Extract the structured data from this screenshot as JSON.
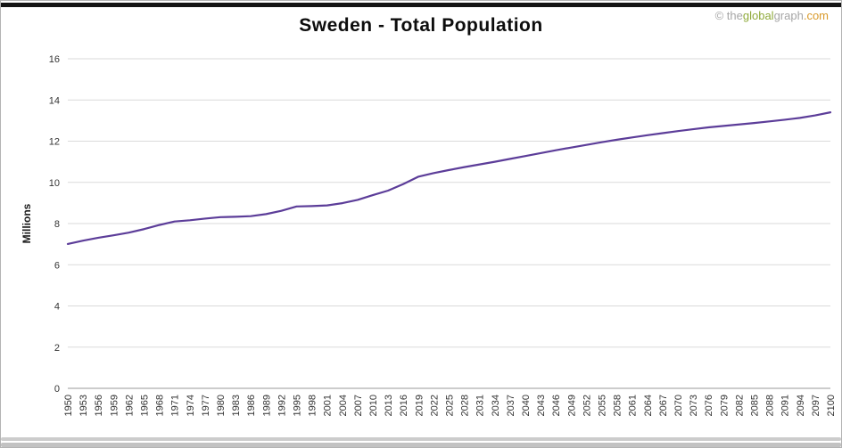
{
  "page": {
    "watermark": {
      "symbol": "© ",
      "parts": [
        {
          "text": "the",
          "color": "#a6a6a6"
        },
        {
          "text": "global",
          "color": "#8faa3b"
        },
        {
          "text": "graph",
          "color": "#a6a6a6"
        },
        {
          "text": ".com",
          "color": "#d99a2b"
        }
      ]
    }
  },
  "chart_data": {
    "type": "line",
    "title": "Sweden - Total Population",
    "xlabel": "",
    "ylabel": "Millions",
    "ylim": [
      0,
      16
    ],
    "ytick_step": 2,
    "grid": "horizontal",
    "legend": "none",
    "line_color": "#5C3D99",
    "grid_color": "#dadada",
    "axis_color": "#9a9a9a",
    "tick_label_color": "#333333",
    "categories": [
      "1950",
      "1953",
      "1956",
      "1959",
      "1962",
      "1965",
      "1968",
      "1971",
      "1974",
      "1977",
      "1980",
      "1983",
      "1986",
      "1989",
      "1992",
      "1995",
      "1998",
      "2001",
      "2004",
      "2007",
      "2010",
      "2013",
      "2016",
      "2019",
      "2022",
      "2025",
      "2028",
      "2031",
      "2034",
      "2037",
      "2040",
      "2043",
      "2046",
      "2049",
      "2052",
      "2055",
      "2058",
      "2061",
      "2064",
      "2067",
      "2070",
      "2073",
      "2076",
      "2079",
      "2082",
      "2085",
      "2088",
      "2091",
      "2094",
      "2097",
      "2100"
    ],
    "values": [
      7.01,
      7.17,
      7.31,
      7.43,
      7.56,
      7.73,
      7.93,
      8.1,
      8.16,
      8.24,
      8.31,
      8.33,
      8.36,
      8.46,
      8.62,
      8.83,
      8.85,
      8.88,
      8.99,
      9.15,
      9.38,
      9.6,
      9.92,
      10.28,
      10.45,
      10.6,
      10.74,
      10.87,
      11.0,
      11.14,
      11.28,
      11.42,
      11.56,
      11.69,
      11.82,
      11.95,
      12.07,
      12.18,
      12.29,
      12.39,
      12.49,
      12.58,
      12.67,
      12.74,
      12.81,
      12.88,
      12.96,
      13.04,
      13.13,
      13.25,
      13.4
    ]
  }
}
